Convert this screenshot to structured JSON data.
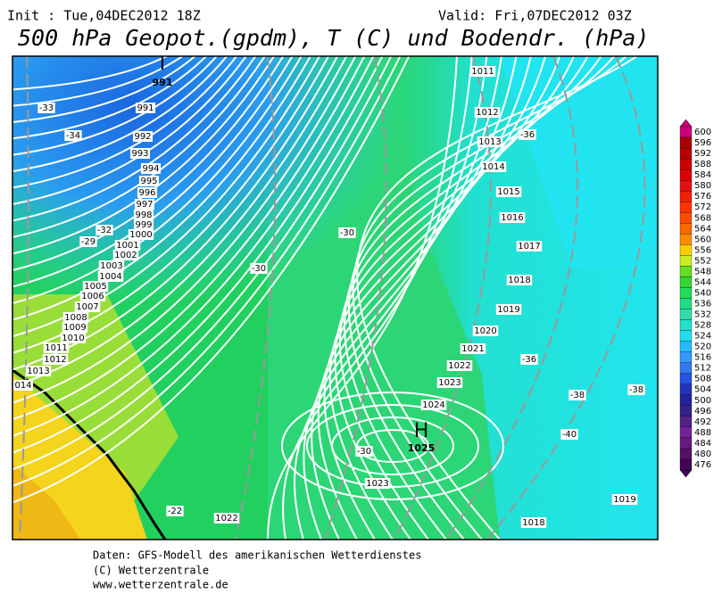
{
  "header": {
    "init": "Init : Tue,04DEC2012 18Z",
    "valid": "Valid: Fri,07DEC2012 03Z",
    "title": "500 hPa Geopot.(gpdm), T (C) und Bodendr. (hPa)"
  },
  "map": {
    "pressure_labels": [
      "991",
      "992",
      "993",
      "994",
      "995",
      "996",
      "997",
      "998",
      "999",
      "1000",
      "1001",
      "1002",
      "1003",
      "1004",
      "1005",
      "1006",
      "1007",
      "1008",
      "1009",
      "1010",
      "1011",
      "1012",
      "1013",
      "014",
      "1011",
      "1012",
      "1013",
      "1014",
      "1015",
      "1016",
      "1017",
      "1018",
      "1019",
      "1020",
      "1021",
      "1022",
      "1023",
      "1024",
      "1023",
      "1022",
      "1019",
      "1018"
    ],
    "centers": [
      {
        "symbol": "T",
        "label": "991"
      },
      {
        "symbol": "H",
        "label": "1025"
      }
    ],
    "temperature_labels": [
      "-33",
      "-34",
      "-32",
      "-29",
      "-30",
      "-30",
      "-36",
      "-36",
      "-38",
      "-38",
      "-40",
      "-30",
      "-22"
    ]
  },
  "legend": {
    "labels": [
      600,
      596,
      592,
      588,
      584,
      580,
      576,
      572,
      568,
      564,
      560,
      556,
      552,
      548,
      544,
      540,
      536,
      532,
      528,
      524,
      520,
      516,
      512,
      508,
      504,
      500,
      496,
      492,
      488,
      484,
      480,
      476
    ]
  },
  "footer": [
    "Daten: GFS-Modell des amerikanischen Wetterdienstes",
    "(C) Wetterzentrale",
    "www.wetterzentrale.de"
  ]
}
